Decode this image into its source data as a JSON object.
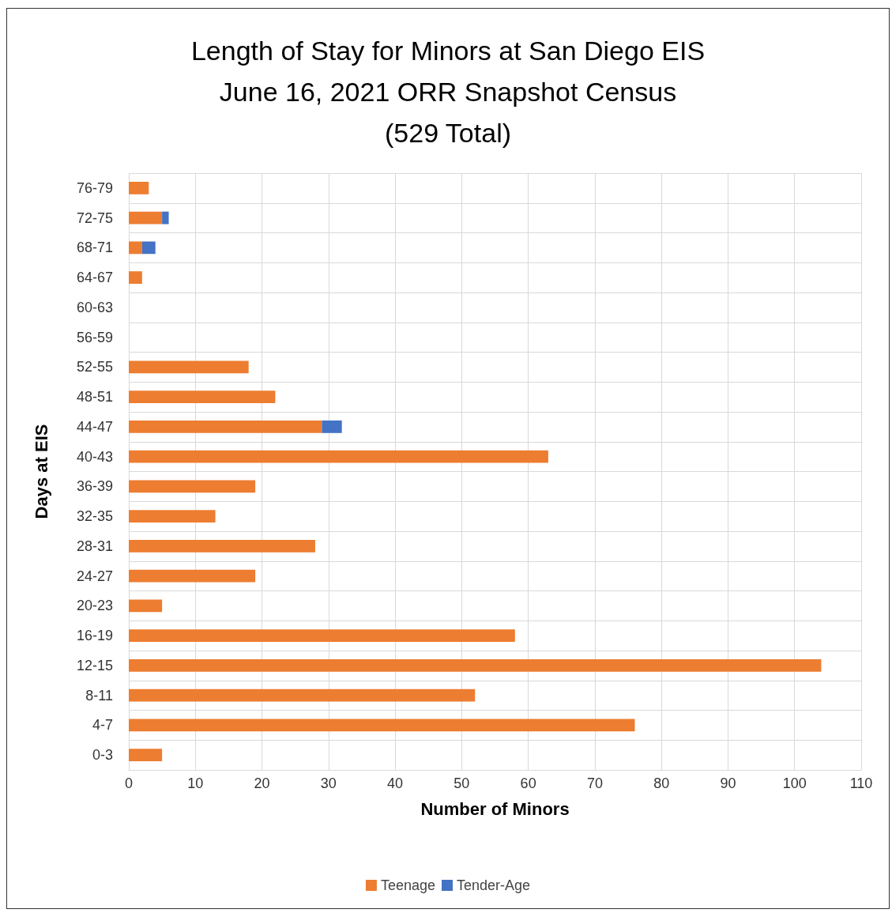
{
  "chart_data": {
    "type": "bar",
    "orientation": "horizontal",
    "stacked": true,
    "title": "Length of Stay for Minors at San Diego EIS\nJune 16, 2021 ORR Snapshot Census\n(529 Total)",
    "xlabel": "Number of Minors",
    "ylabel": "Days at EIS",
    "categories": [
      "76-79",
      "72-75",
      "68-71",
      "64-67",
      "60-63",
      "56-59",
      "52-55",
      "48-51",
      "44-47",
      "40-43",
      "36-39",
      "32-35",
      "28-31",
      "24-27",
      "20-23",
      "16-19",
      "12-15",
      "8-11",
      "4-7",
      "0-3"
    ],
    "series": [
      {
        "name": "Teenage",
        "color": "#ed7d31",
        "values": [
          3,
          5,
          2,
          2,
          0,
          0,
          18,
          22,
          29,
          63,
          19,
          13,
          28,
          19,
          5,
          58,
          104,
          52,
          76,
          5
        ]
      },
      {
        "name": "Tender-Age",
        "color": "#4472c4",
        "values": [
          null,
          1,
          2,
          null,
          null,
          null,
          null,
          null,
          3,
          null,
          null,
          null,
          null,
          null,
          null,
          null,
          null,
          null,
          null,
          null
        ]
      }
    ],
    "xlim": [
      0,
      110
    ],
    "xticks": [
      0,
      10,
      20,
      30,
      40,
      50,
      60,
      70,
      80,
      90,
      100,
      110
    ],
    "grid": true,
    "legend": "bottom"
  }
}
